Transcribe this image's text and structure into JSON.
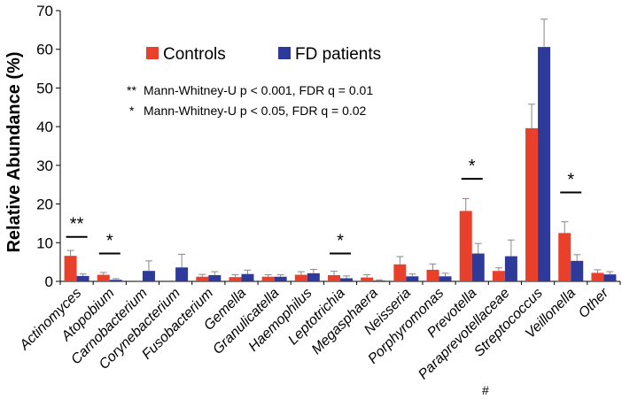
{
  "chart_data": {
    "type": "bar",
    "title": "",
    "xlabel": "",
    "ylabel": "Relative Abundance (%)",
    "ylim": [
      0,
      70
    ],
    "yticks": [
      0,
      10,
      20,
      30,
      40,
      50,
      60,
      70
    ],
    "categories": [
      "Actinomyces",
      "Atopobium",
      "Carnobacterium",
      "Corynebacterium",
      "Fusobacterium",
      "Gemella",
      "Granulicatella",
      "Haemophilus",
      "Leptotrichia",
      "Megasphaera",
      "Neisseria",
      "Porphyromonas",
      "Prevotella",
      "Paraprevotellaceae",
      "Streptococcus",
      "Veillonella",
      "Other"
    ],
    "category_prefix": {
      "Paraprevotellaceae": "#"
    },
    "series": [
      {
        "name": "Controls",
        "color": "#e8402a",
        "values": [
          6.6,
          1.7,
          0,
          0,
          1.2,
          1.1,
          1.2,
          1.7,
          1.6,
          1.0,
          4.4,
          3.0,
          18.2,
          2.7,
          39.6,
          12.5,
          2.2
        ],
        "errors": [
          1.4,
          0.6,
          0,
          0,
          0.6,
          0.6,
          0.5,
          0.8,
          1.0,
          0.7,
          2.0,
          1.5,
          3.2,
          0.8,
          6.2,
          2.9,
          0.8
        ]
      },
      {
        "name": "FD patients",
        "color": "#2e3a9a",
        "values": [
          1.4,
          0.4,
          2.7,
          3.6,
          1.6,
          1.9,
          1.2,
          2.1,
          0.8,
          0.2,
          1.3,
          1.3,
          7.2,
          6.5,
          60.6,
          5.3,
          1.8
        ],
        "errors": [
          0.5,
          0.3,
          2.6,
          3.4,
          0.9,
          1.0,
          0.5,
          1.0,
          0.6,
          0.2,
          0.6,
          0.8,
          2.6,
          4.2,
          7.2,
          1.6,
          0.7
        ]
      }
    ],
    "significance": [
      {
        "category": "Actinomyces",
        "symbol": "**",
        "bar_y": 11.5
      },
      {
        "category": "Atopobium",
        "symbol": "*",
        "bar_y": 7.2
      },
      {
        "category": "Leptotrichia",
        "symbol": "*",
        "bar_y": 7.2
      },
      {
        "category": "Prevotella",
        "symbol": "*",
        "bar_y": 26.5
      },
      {
        "category": "Veillonella",
        "symbol": "*",
        "bar_y": 23.0
      }
    ],
    "legend": {
      "placement": "top-center",
      "entries": [
        "Controls",
        "FD patients"
      ]
    },
    "notes": [
      {
        "symbol": "**",
        "text": "Mann-Whitney-U p < 0.001, FDR q = 0.01"
      },
      {
        "symbol": "*",
        "text": "Mann-Whitney-U p < 0.05, FDR q = 0.02"
      }
    ]
  }
}
